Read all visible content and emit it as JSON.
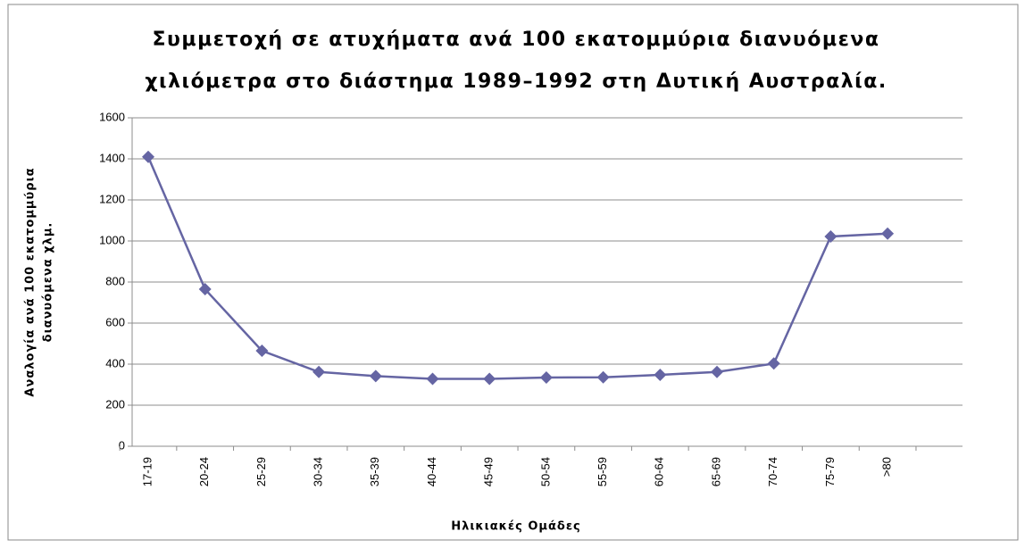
{
  "chart_data": {
    "type": "line",
    "title": [
      "Συμμετοχή σε ατυχήματα ανά 100 εκατομμύρια διανυόμενα",
      "χιλιόμετρα στο διάστημα 1989–1992 στη Δυτική Αυστραλία."
    ],
    "y_label": [
      "Αναλογία ανά 100 εκατομμύρια",
      "διανυόμενα χλμ."
    ],
    "x_label": "Ηλικιακές Ομάδες",
    "categories": [
      "17-19",
      "20-24",
      "25-29",
      "30-34",
      "35-39",
      "40-44",
      "45-49",
      "50-54",
      "55-59",
      "60-64",
      "65-69",
      "70-74",
      "75-79",
      ">80"
    ],
    "series": [
      {
        "name": "Αναλογία",
        "color": "#6565a3",
        "values": [
          1410,
          765,
          465,
          362,
          342,
          328,
          328,
          335,
          336,
          348,
          362,
          403,
          1022,
          1036
        ]
      }
    ],
    "ylim": [
      0,
      1600
    ],
    "yticks": [
      0,
      200,
      400,
      600,
      800,
      1000,
      1200,
      1400,
      1600
    ],
    "grid": true
  }
}
